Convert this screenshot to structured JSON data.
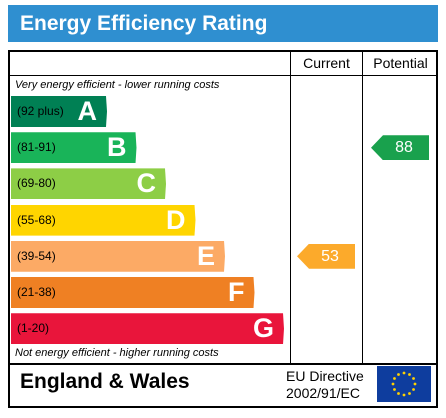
{
  "title": "Energy Efficiency Rating",
  "columns": {
    "current": "Current",
    "potential": "Potential"
  },
  "top_note": "Very energy efficient - lower running costs",
  "bottom_note": "Not energy efficient - higher running costs",
  "footer": {
    "country": "England & Wales",
    "directive_line1": "EU Directive",
    "directive_line2": "2002/91/EC"
  },
  "colors": {
    "header": "#2f8fd0",
    "eu_flag": "#0e3d9e",
    "eu_stars": "#ffd200"
  },
  "chart_data": {
    "type": "bar",
    "bands": [
      {
        "letter": "A",
        "range": "(92 plus)",
        "color": "#008054",
        "min": 92
      },
      {
        "letter": "B",
        "range": "(81-91)",
        "color": "#19b459",
        "min": 81
      },
      {
        "letter": "C",
        "range": "(69-80)",
        "color": "#8dce46",
        "min": 69
      },
      {
        "letter": "D",
        "range": "(55-68)",
        "color": "#ffd500",
        "min": 55
      },
      {
        "letter": "E",
        "range": "(39-54)",
        "color": "#fcaa65",
        "min": 39
      },
      {
        "letter": "F",
        "range": "(21-38)",
        "color": "#ef8023",
        "min": 21
      },
      {
        "letter": "G",
        "range": "(1-20)",
        "color": "#e9153b",
        "min": 1
      }
    ],
    "current": {
      "value": 53,
      "label": "53",
      "color": "#fcaa2b"
    },
    "potential": {
      "value": 88,
      "label": "88",
      "color": "#19a14d"
    }
  }
}
